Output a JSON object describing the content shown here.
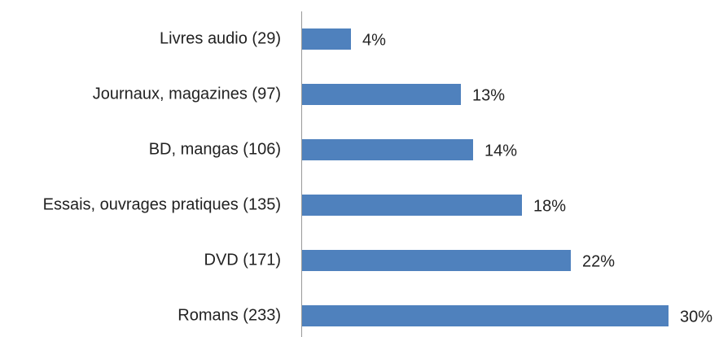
{
  "chart_data": {
    "type": "hbar",
    "categories": [
      "Livres audio (29)",
      "Journaux, magazines (97)",
      "BD, mangas (106)",
      "Essais, ouvrages pratiques (135)",
      "DVD (171)",
      "Romans (233)"
    ],
    "values": [
      4,
      13,
      14,
      18,
      22,
      30
    ],
    "value_labels": [
      "4%",
      "13%",
      "14%",
      "18%",
      "22%",
      "30%"
    ],
    "color": "#4f81bd"
  }
}
